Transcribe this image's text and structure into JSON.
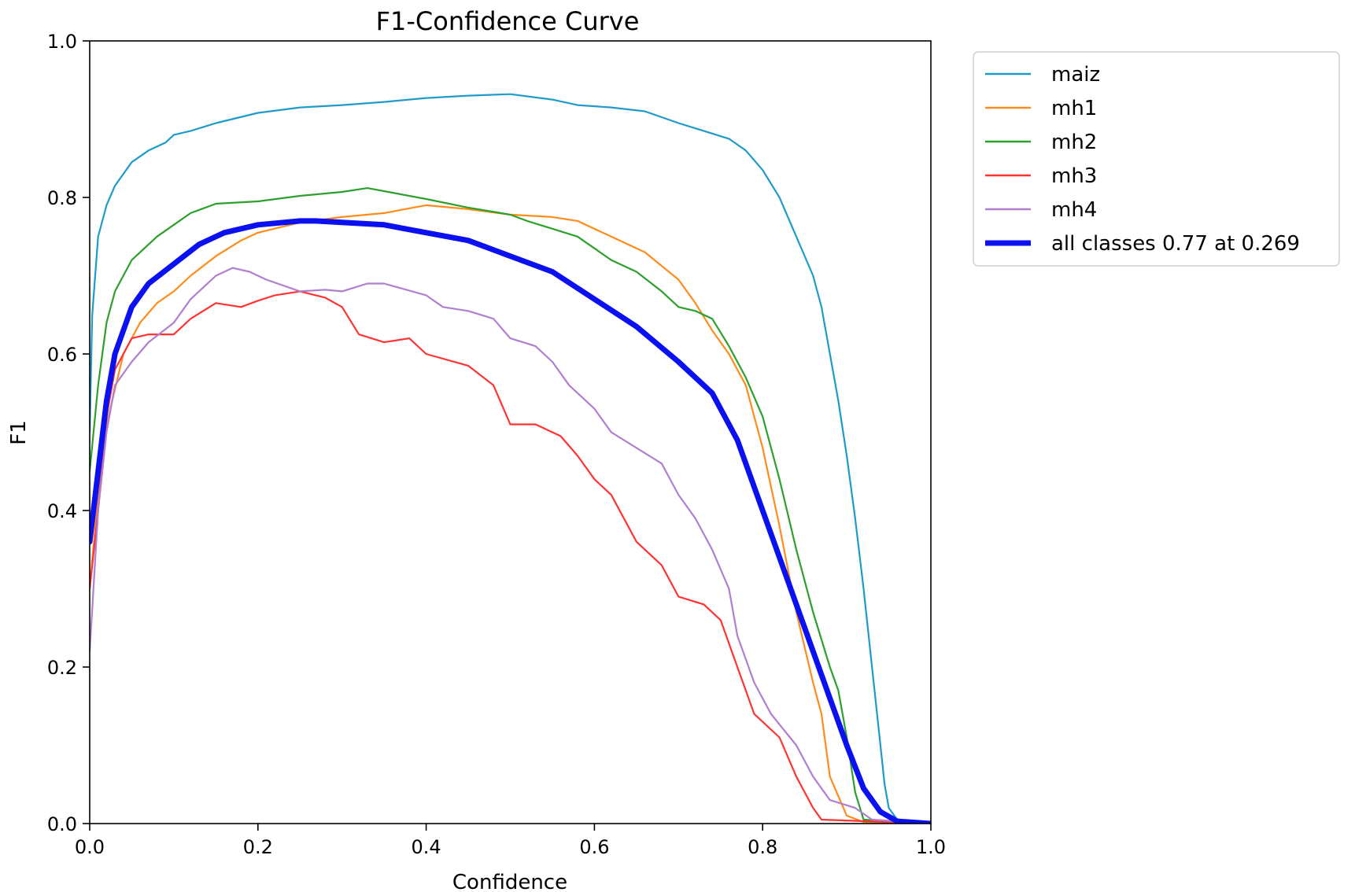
{
  "chart_data": {
    "type": "line",
    "title": "F1-Confidence Curve",
    "xlabel": "Confidence",
    "ylabel": "F1",
    "xlim": [
      0,
      1
    ],
    "ylim": [
      0,
      1
    ],
    "xticks": [
      0.0,
      0.2,
      0.4,
      0.6,
      0.8,
      1.0
    ],
    "xtick_labels": [
      "0.0",
      "0.2",
      "0.4",
      "0.6",
      "0.8",
      "1.0"
    ],
    "yticks": [
      0.0,
      0.2,
      0.4,
      0.6,
      0.8,
      1.0
    ],
    "ytick_labels": [
      "0.0",
      "0.2",
      "0.4",
      "0.6",
      "0.8",
      "1.0"
    ],
    "grid": false,
    "legend_position": "outside-top-right",
    "series": [
      {
        "name": "maiz",
        "color": "#1f9ac9",
        "thick": false,
        "points": [
          [
            0,
            0.5
          ],
          [
            0.003,
            0.65
          ],
          [
            0.01,
            0.75
          ],
          [
            0.02,
            0.79
          ],
          [
            0.03,
            0.815
          ],
          [
            0.05,
            0.845
          ],
          [
            0.07,
            0.86
          ],
          [
            0.09,
            0.87
          ],
          [
            0.1,
            0.88
          ],
          [
            0.12,
            0.885
          ],
          [
            0.15,
            0.895
          ],
          [
            0.2,
            0.908
          ],
          [
            0.25,
            0.915
          ],
          [
            0.3,
            0.918
          ],
          [
            0.35,
            0.922
          ],
          [
            0.4,
            0.927
          ],
          [
            0.45,
            0.93
          ],
          [
            0.5,
            0.932
          ],
          [
            0.55,
            0.925
          ],
          [
            0.58,
            0.918
          ],
          [
            0.62,
            0.915
          ],
          [
            0.66,
            0.91
          ],
          [
            0.7,
            0.895
          ],
          [
            0.73,
            0.885
          ],
          [
            0.76,
            0.875
          ],
          [
            0.78,
            0.86
          ],
          [
            0.8,
            0.835
          ],
          [
            0.82,
            0.8
          ],
          [
            0.84,
            0.75
          ],
          [
            0.86,
            0.7
          ],
          [
            0.87,
            0.66
          ],
          [
            0.88,
            0.6
          ],
          [
            0.89,
            0.54
          ],
          [
            0.9,
            0.47
          ],
          [
            0.91,
            0.39
          ],
          [
            0.92,
            0.3
          ],
          [
            0.93,
            0.2
          ],
          [
            0.94,
            0.1
          ],
          [
            0.945,
            0.05
          ],
          [
            0.95,
            0.02
          ],
          [
            0.96,
            0.005
          ],
          [
            1.0,
            0
          ]
        ]
      },
      {
        "name": "mh1",
        "color": "#ff8c1a",
        "thick": false,
        "points": [
          [
            0,
            0.3
          ],
          [
            0.01,
            0.42
          ],
          [
            0.02,
            0.51
          ],
          [
            0.04,
            0.6
          ],
          [
            0.06,
            0.64
          ],
          [
            0.08,
            0.665
          ],
          [
            0.1,
            0.68
          ],
          [
            0.12,
            0.7
          ],
          [
            0.15,
            0.725
          ],
          [
            0.18,
            0.745
          ],
          [
            0.2,
            0.755
          ],
          [
            0.25,
            0.768
          ],
          [
            0.3,
            0.775
          ],
          [
            0.35,
            0.78
          ],
          [
            0.4,
            0.79
          ],
          [
            0.45,
            0.785
          ],
          [
            0.5,
            0.778
          ],
          [
            0.55,
            0.775
          ],
          [
            0.58,
            0.77
          ],
          [
            0.62,
            0.75
          ],
          [
            0.66,
            0.73
          ],
          [
            0.7,
            0.695
          ],
          [
            0.72,
            0.665
          ],
          [
            0.74,
            0.63
          ],
          [
            0.76,
            0.6
          ],
          [
            0.78,
            0.56
          ],
          [
            0.8,
            0.48
          ],
          [
            0.82,
            0.38
          ],
          [
            0.84,
            0.27
          ],
          [
            0.86,
            0.18
          ],
          [
            0.87,
            0.14
          ],
          [
            0.88,
            0.06
          ],
          [
            0.9,
            0.01
          ],
          [
            0.92,
            0.002
          ],
          [
            1.0,
            0
          ]
        ]
      },
      {
        "name": "mh2",
        "color": "#2ca02c",
        "thick": false,
        "points": [
          [
            0,
            0.45
          ],
          [
            0.01,
            0.56
          ],
          [
            0.02,
            0.64
          ],
          [
            0.03,
            0.68
          ],
          [
            0.05,
            0.72
          ],
          [
            0.08,
            0.75
          ],
          [
            0.1,
            0.765
          ],
          [
            0.12,
            0.78
          ],
          [
            0.15,
            0.792
          ],
          [
            0.2,
            0.795
          ],
          [
            0.25,
            0.802
          ],
          [
            0.3,
            0.807
          ],
          [
            0.33,
            0.812
          ],
          [
            0.36,
            0.806
          ],
          [
            0.4,
            0.798
          ],
          [
            0.45,
            0.787
          ],
          [
            0.5,
            0.778
          ],
          [
            0.52,
            0.77
          ],
          [
            0.55,
            0.76
          ],
          [
            0.58,
            0.75
          ],
          [
            0.6,
            0.735
          ],
          [
            0.62,
            0.72
          ],
          [
            0.65,
            0.705
          ],
          [
            0.68,
            0.68
          ],
          [
            0.7,
            0.66
          ],
          [
            0.72,
            0.655
          ],
          [
            0.74,
            0.645
          ],
          [
            0.76,
            0.61
          ],
          [
            0.78,
            0.57
          ],
          [
            0.8,
            0.52
          ],
          [
            0.82,
            0.44
          ],
          [
            0.84,
            0.35
          ],
          [
            0.86,
            0.27
          ],
          [
            0.88,
            0.2
          ],
          [
            0.89,
            0.17
          ],
          [
            0.9,
            0.11
          ],
          [
            0.91,
            0.04
          ],
          [
            0.92,
            0.005
          ],
          [
            1.0,
            0
          ]
        ]
      },
      {
        "name": "mh3",
        "color": "#ff3333",
        "thick": false,
        "points": [
          [
            0,
            0.3
          ],
          [
            0.01,
            0.4
          ],
          [
            0.02,
            0.52
          ],
          [
            0.03,
            0.58
          ],
          [
            0.05,
            0.62
          ],
          [
            0.07,
            0.625
          ],
          [
            0.1,
            0.625
          ],
          [
            0.12,
            0.645
          ],
          [
            0.15,
            0.665
          ],
          [
            0.18,
            0.66
          ],
          [
            0.2,
            0.668
          ],
          [
            0.22,
            0.675
          ],
          [
            0.25,
            0.68
          ],
          [
            0.28,
            0.672
          ],
          [
            0.3,
            0.66
          ],
          [
            0.32,
            0.625
          ],
          [
            0.35,
            0.615
          ],
          [
            0.38,
            0.62
          ],
          [
            0.4,
            0.6
          ],
          [
            0.45,
            0.585
          ],
          [
            0.48,
            0.56
          ],
          [
            0.5,
            0.51
          ],
          [
            0.53,
            0.51
          ],
          [
            0.56,
            0.495
          ],
          [
            0.58,
            0.47
          ],
          [
            0.6,
            0.44
          ],
          [
            0.62,
            0.42
          ],
          [
            0.65,
            0.36
          ],
          [
            0.68,
            0.33
          ],
          [
            0.7,
            0.29
          ],
          [
            0.73,
            0.28
          ],
          [
            0.75,
            0.26
          ],
          [
            0.77,
            0.2
          ],
          [
            0.79,
            0.14
          ],
          [
            0.82,
            0.11
          ],
          [
            0.84,
            0.06
          ],
          [
            0.86,
            0.02
          ],
          [
            0.87,
            0.005
          ],
          [
            1.0,
            0
          ]
        ]
      },
      {
        "name": "mh4",
        "color": "#b07fd0",
        "thick": false,
        "points": [
          [
            0,
            0.22
          ],
          [
            0.01,
            0.4
          ],
          [
            0.02,
            0.5
          ],
          [
            0.03,
            0.56
          ],
          [
            0.05,
            0.59
          ],
          [
            0.07,
            0.615
          ],
          [
            0.1,
            0.64
          ],
          [
            0.12,
            0.67
          ],
          [
            0.15,
            0.7
          ],
          [
            0.17,
            0.71
          ],
          [
            0.19,
            0.705
          ],
          [
            0.21,
            0.695
          ],
          [
            0.25,
            0.68
          ],
          [
            0.28,
            0.682
          ],
          [
            0.3,
            0.68
          ],
          [
            0.33,
            0.69
          ],
          [
            0.35,
            0.69
          ],
          [
            0.4,
            0.675
          ],
          [
            0.42,
            0.66
          ],
          [
            0.45,
            0.655
          ],
          [
            0.48,
            0.645
          ],
          [
            0.5,
            0.62
          ],
          [
            0.53,
            0.61
          ],
          [
            0.55,
            0.59
          ],
          [
            0.57,
            0.56
          ],
          [
            0.6,
            0.53
          ],
          [
            0.62,
            0.5
          ],
          [
            0.65,
            0.48
          ],
          [
            0.68,
            0.46
          ],
          [
            0.7,
            0.42
          ],
          [
            0.72,
            0.39
          ],
          [
            0.74,
            0.35
          ],
          [
            0.76,
            0.3
          ],
          [
            0.77,
            0.24
          ],
          [
            0.79,
            0.18
          ],
          [
            0.81,
            0.14
          ],
          [
            0.84,
            0.1
          ],
          [
            0.86,
            0.06
          ],
          [
            0.88,
            0.03
          ],
          [
            0.91,
            0.02
          ],
          [
            0.93,
            0.005
          ],
          [
            1.0,
            0
          ]
        ]
      },
      {
        "name": "all classes 0.77 at 0.269",
        "color": "#0a10f0",
        "thick": true,
        "points": [
          [
            0,
            0.36
          ],
          [
            0.01,
            0.45
          ],
          [
            0.02,
            0.54
          ],
          [
            0.03,
            0.6
          ],
          [
            0.05,
            0.66
          ],
          [
            0.07,
            0.69
          ],
          [
            0.1,
            0.715
          ],
          [
            0.13,
            0.74
          ],
          [
            0.16,
            0.755
          ],
          [
            0.2,
            0.765
          ],
          [
            0.25,
            0.77
          ],
          [
            0.269,
            0.77
          ],
          [
            0.3,
            0.768
          ],
          [
            0.35,
            0.765
          ],
          [
            0.4,
            0.755
          ],
          [
            0.45,
            0.745
          ],
          [
            0.5,
            0.725
          ],
          [
            0.55,
            0.705
          ],
          [
            0.6,
            0.67
          ],
          [
            0.65,
            0.635
          ],
          [
            0.7,
            0.59
          ],
          [
            0.74,
            0.55
          ],
          [
            0.77,
            0.49
          ],
          [
            0.8,
            0.4
          ],
          [
            0.83,
            0.31
          ],
          [
            0.86,
            0.22
          ],
          [
            0.88,
            0.16
          ],
          [
            0.9,
            0.1
          ],
          [
            0.92,
            0.045
          ],
          [
            0.94,
            0.015
          ],
          [
            0.96,
            0.003
          ],
          [
            1.0,
            0
          ]
        ]
      }
    ]
  }
}
